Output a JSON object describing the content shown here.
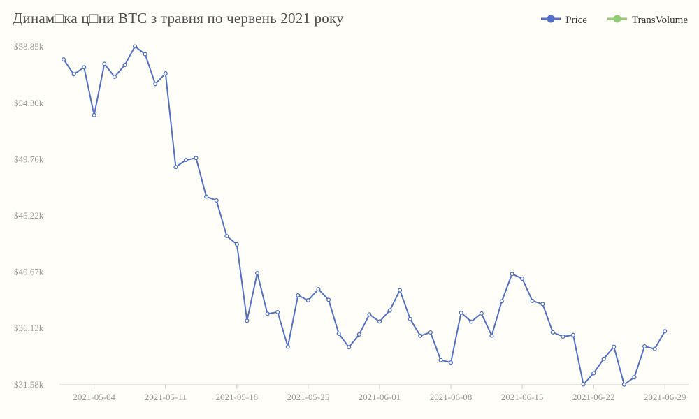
{
  "chart": {
    "title": "Динам□ка ц□ни BTC з травня по червень 2021 року",
    "legend": [
      {
        "label": "Price",
        "color": "#5470c6"
      },
      {
        "label": "TransVolume",
        "color": "#91cc75"
      }
    ]
  },
  "chart_data": {
    "type": "line",
    "title": "Динам□ка ц□ни BTC з травня по червень 2021 року",
    "ylim": [
      31580,
      58850
    ],
    "grid": false,
    "legend_position": "top-right",
    "y_ticks": [
      "$58.85k",
      "$54.30k",
      "$49.76k",
      "$45.22k",
      "$40.67k",
      "$36.13k",
      "$31.58k"
    ],
    "y_tick_values": [
      58850,
      54300,
      49760,
      45220,
      40670,
      36130,
      31580
    ],
    "x_ticks": [
      "2021-05-04",
      "2021-05-11",
      "2021-05-18",
      "2021-05-25",
      "2021-06-01",
      "2021-06-08",
      "2021-06-15",
      "2021-06-22",
      "2021-06-29"
    ],
    "x_tick_indices": [
      3,
      10,
      17,
      24,
      31,
      38,
      45,
      52,
      59
    ],
    "x": [
      "2021-05-01",
      "2021-05-02",
      "2021-05-03",
      "2021-05-04",
      "2021-05-05",
      "2021-05-06",
      "2021-05-07",
      "2021-05-08",
      "2021-05-09",
      "2021-05-10",
      "2021-05-11",
      "2021-05-12",
      "2021-05-13",
      "2021-05-14",
      "2021-05-15",
      "2021-05-16",
      "2021-05-17",
      "2021-05-18",
      "2021-05-19",
      "2021-05-20",
      "2021-05-21",
      "2021-05-22",
      "2021-05-23",
      "2021-05-24",
      "2021-05-25",
      "2021-05-26",
      "2021-05-27",
      "2021-05-28",
      "2021-05-29",
      "2021-05-30",
      "2021-05-31",
      "2021-06-01",
      "2021-06-02",
      "2021-06-03",
      "2021-06-04",
      "2021-06-05",
      "2021-06-06",
      "2021-06-07",
      "2021-06-08",
      "2021-06-09",
      "2021-06-10",
      "2021-06-11",
      "2021-06-12",
      "2021-06-13",
      "2021-06-14",
      "2021-06-15",
      "2021-06-16",
      "2021-06-17",
      "2021-06-18",
      "2021-06-19",
      "2021-06-20",
      "2021-06-21",
      "2021-06-22",
      "2021-06-23",
      "2021-06-24",
      "2021-06-25",
      "2021-06-26",
      "2021-06-27",
      "2021-06-28",
      "2021-06-29"
    ],
    "series": [
      {
        "name": "Price",
        "color": "#5470c6",
        "values": [
          57828,
          56631,
          57200,
          53333,
          57473,
          56428,
          57380,
          58877,
          58251,
          55847,
          56704,
          49150,
          49716,
          49880,
          46760,
          46456,
          43580,
          42909,
          36753,
          40596,
          37304,
          37448,
          34655,
          38796,
          38392,
          39294,
          38436,
          35697,
          34607,
          35641,
          37253,
          36685,
          37575,
          39208,
          36895,
          35538,
          35803,
          33575,
          33380,
          37389,
          36680,
          37332,
          35546,
          38320,
          40525,
          40144,
          38349,
          38093,
          35819,
          35470,
          35600,
          31608,
          32505,
          33674,
          34649,
          31594,
          32186,
          34679,
          34475,
          35908
        ]
      },
      {
        "name": "TransVolume",
        "color": "#91cc75",
        "values": []
      }
    ]
  }
}
